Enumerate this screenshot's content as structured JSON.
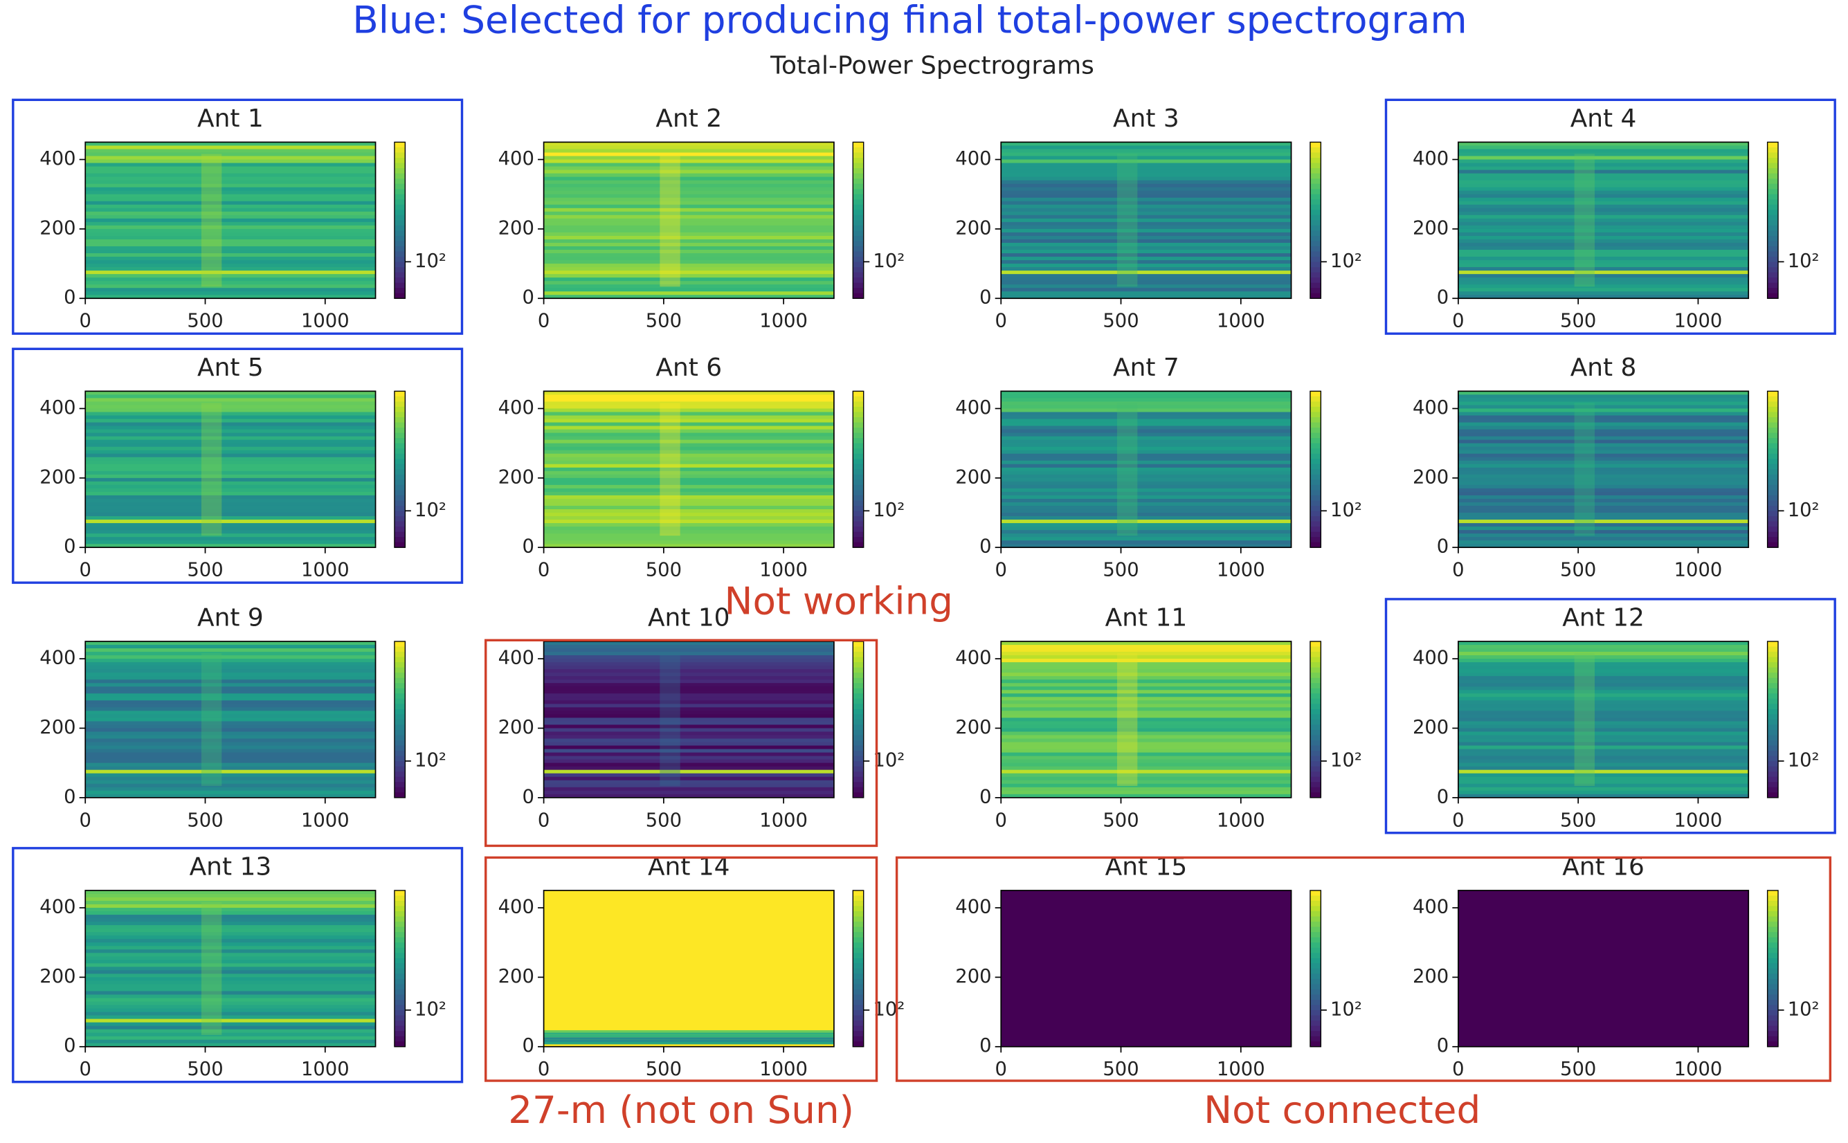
{
  "title": "Blue: Selected for producing final total-power spectrogram",
  "title_color": "#1f3fe0",
  "subtitle": "Total-Power Spectrograms",
  "selected_panels": [
    "Ant 1",
    "Ant 4",
    "Ant 5",
    "Ant 12",
    "Ant 13"
  ],
  "annotations": [
    {
      "text": "Not working",
      "color": "#d0402a",
      "panels": [
        "Ant 10"
      ]
    },
    {
      "text": "27-m (not on Sun)",
      "color": "#d0402a",
      "panels": [
        "Ant 14"
      ]
    },
    {
      "text": "Not connected",
      "color": "#d0402a",
      "panels": [
        "Ant 15",
        "Ant 16"
      ]
    }
  ],
  "chart_data": [
    {
      "type": "heatmap",
      "title": "Ant 1",
      "xlim": [
        0,
        1210
      ],
      "ylim": [
        0,
        450
      ],
      "xticks": [
        0,
        500,
        1000
      ],
      "yticks": [
        0,
        200,
        400
      ],
      "clim": [
        40,
        2000
      ],
      "log_scale": true,
      "colormap": "viridis",
      "cticks": [
        {
          "value": 100,
          "label": "10²"
        }
      ]
    },
    {
      "type": "heatmap",
      "title": "Ant 2",
      "xlim": [
        0,
        1210
      ],
      "ylim": [
        0,
        450
      ],
      "xticks": [
        0,
        500,
        1000
      ],
      "yticks": [
        0,
        200,
        400
      ],
      "clim": [
        40,
        2000
      ],
      "log_scale": true,
      "colormap": "viridis",
      "cticks": [
        {
          "value": 100,
          "label": "10²"
        }
      ]
    },
    {
      "type": "heatmap",
      "title": "Ant 3",
      "xlim": [
        0,
        1210
      ],
      "ylim": [
        0,
        450
      ],
      "xticks": [
        0,
        500,
        1000
      ],
      "yticks": [
        0,
        200,
        400
      ],
      "clim": [
        40,
        2000
      ],
      "log_scale": true,
      "colormap": "viridis",
      "cticks": [
        {
          "value": 100,
          "label": "10²"
        }
      ]
    },
    {
      "type": "heatmap",
      "title": "Ant 4",
      "xlim": [
        0,
        1210
      ],
      "ylim": [
        0,
        450
      ],
      "xticks": [
        0,
        500,
        1000
      ],
      "yticks": [
        0,
        200,
        400
      ],
      "clim": [
        40,
        2000
      ],
      "log_scale": true,
      "colormap": "viridis",
      "cticks": [
        {
          "value": 100,
          "label": "10²"
        }
      ]
    },
    {
      "type": "heatmap",
      "title": "Ant 5",
      "xlim": [
        0,
        1210
      ],
      "ylim": [
        0,
        450
      ],
      "xticks": [
        0,
        500,
        1000
      ],
      "yticks": [
        0,
        200,
        400
      ],
      "clim": [
        40,
        2000
      ],
      "log_scale": true,
      "colormap": "viridis",
      "cticks": [
        {
          "value": 100,
          "label": "10²"
        }
      ]
    },
    {
      "type": "heatmap",
      "title": "Ant 6",
      "xlim": [
        0,
        1210
      ],
      "ylim": [
        0,
        450
      ],
      "xticks": [
        0,
        500,
        1000
      ],
      "yticks": [
        0,
        200,
        400
      ],
      "clim": [
        40,
        2000
      ],
      "log_scale": true,
      "colormap": "viridis",
      "cticks": [
        {
          "value": 100,
          "label": "10²"
        }
      ]
    },
    {
      "type": "heatmap",
      "title": "Ant 7",
      "xlim": [
        0,
        1210
      ],
      "ylim": [
        0,
        450
      ],
      "xticks": [
        0,
        500,
        1000
      ],
      "yticks": [
        0,
        200,
        400
      ],
      "clim": [
        40,
        2000
      ],
      "log_scale": true,
      "colormap": "viridis",
      "cticks": [
        {
          "value": 100,
          "label": "10²"
        }
      ]
    },
    {
      "type": "heatmap",
      "title": "Ant 8",
      "xlim": [
        0,
        1210
      ],
      "ylim": [
        0,
        450
      ],
      "xticks": [
        0,
        500,
        1000
      ],
      "yticks": [
        0,
        200,
        400
      ],
      "clim": [
        40,
        2000
      ],
      "log_scale": true,
      "colormap": "viridis",
      "cticks": [
        {
          "value": 100,
          "label": "10²"
        }
      ]
    },
    {
      "type": "heatmap",
      "title": "Ant 9",
      "xlim": [
        0,
        1210
      ],
      "ylim": [
        0,
        450
      ],
      "xticks": [
        0,
        500,
        1000
      ],
      "yticks": [
        0,
        200,
        400
      ],
      "clim": [
        40,
        2000
      ],
      "log_scale": true,
      "colormap": "viridis",
      "cticks": [
        {
          "value": 100,
          "label": "10²"
        }
      ]
    },
    {
      "type": "heatmap",
      "title": "Ant 10",
      "xlim": [
        0,
        1210
      ],
      "ylim": [
        0,
        450
      ],
      "xticks": [
        0,
        500,
        1000
      ],
      "yticks": [
        0,
        200,
        400
      ],
      "clim": [
        40,
        2000
      ],
      "log_scale": true,
      "colormap": "viridis",
      "cticks": [
        {
          "value": 100,
          "label": "10²"
        }
      ]
    },
    {
      "type": "heatmap",
      "title": "Ant 11",
      "xlim": [
        0,
        1210
      ],
      "ylim": [
        0,
        450
      ],
      "xticks": [
        0,
        500,
        1000
      ],
      "yticks": [
        0,
        200,
        400
      ],
      "clim": [
        40,
        2000
      ],
      "log_scale": true,
      "colormap": "viridis",
      "cticks": [
        {
          "value": 100,
          "label": "10²"
        }
      ]
    },
    {
      "type": "heatmap",
      "title": "Ant 12",
      "xlim": [
        0,
        1210
      ],
      "ylim": [
        0,
        450
      ],
      "xticks": [
        0,
        500,
        1000
      ],
      "yticks": [
        0,
        200,
        400
      ],
      "clim": [
        40,
        2000
      ],
      "log_scale": true,
      "colormap": "viridis",
      "cticks": [
        {
          "value": 100,
          "label": "10²"
        }
      ]
    },
    {
      "type": "heatmap",
      "title": "Ant 13",
      "xlim": [
        0,
        1210
      ],
      "ylim": [
        0,
        450
      ],
      "xticks": [
        0,
        500,
        1000
      ],
      "yticks": [
        0,
        200,
        400
      ],
      "clim": [
        40,
        2000
      ],
      "log_scale": true,
      "colormap": "viridis",
      "cticks": [
        {
          "value": 100,
          "label": "10²"
        }
      ]
    },
    {
      "type": "heatmap",
      "title": "Ant 14",
      "xlim": [
        0,
        1210
      ],
      "ylim": [
        0,
        450
      ],
      "xticks": [
        0,
        500,
        1000
      ],
      "yticks": [
        0,
        200,
        400
      ],
      "clim": [
        40,
        2000
      ],
      "log_scale": true,
      "colormap": "viridis",
      "cticks": [
        {
          "value": 100,
          "label": "10²"
        }
      ]
    },
    {
      "type": "heatmap",
      "title": "Ant 15",
      "xlim": [
        0,
        1210
      ],
      "ylim": [
        0,
        450
      ],
      "xticks": [
        0,
        500,
        1000
      ],
      "yticks": [
        0,
        200,
        400
      ],
      "clim": [
        40,
        2000
      ],
      "log_scale": true,
      "colormap": "viridis",
      "cticks": [
        {
          "value": 100,
          "label": "10²"
        }
      ]
    },
    {
      "type": "heatmap",
      "title": "Ant 16",
      "xlim": [
        0,
        1210
      ],
      "ylim": [
        0,
        450
      ],
      "xticks": [
        0,
        500,
        1000
      ],
      "yticks": [
        0,
        200,
        400
      ],
      "clim": [
        40,
        2000
      ],
      "log_scale": true,
      "colormap": "viridis",
      "cticks": [
        {
          "value": 100,
          "label": "10²"
        }
      ]
    }
  ]
}
